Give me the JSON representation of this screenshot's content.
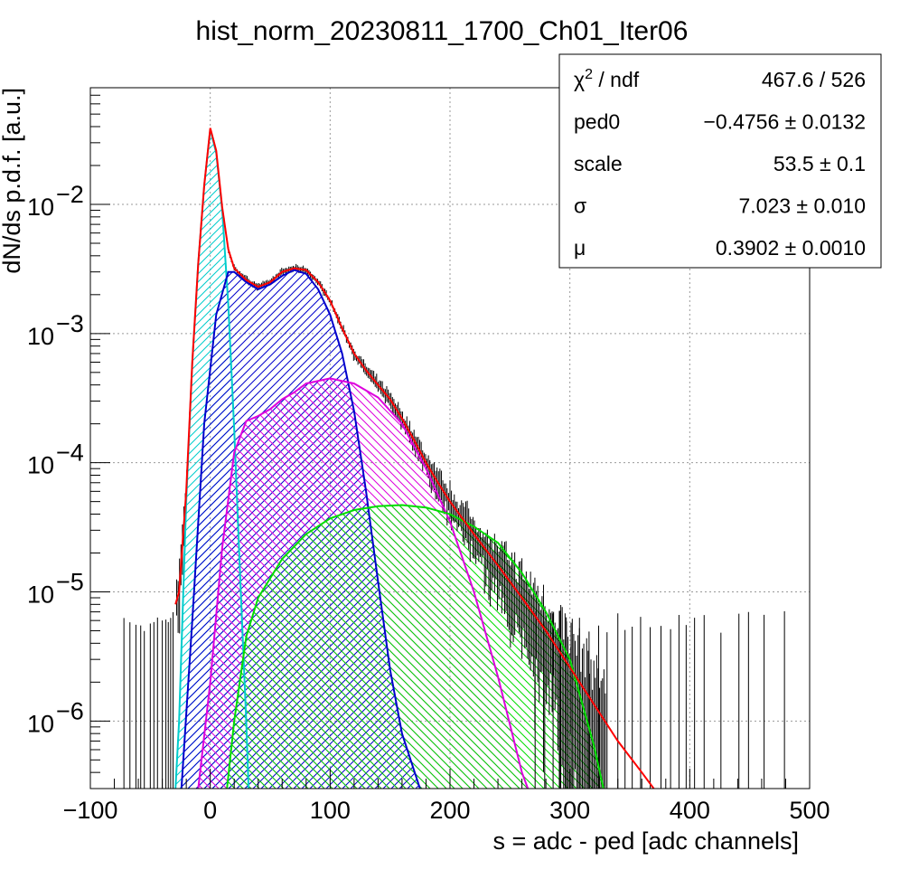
{
  "chart_data": {
    "type": "line",
    "title": "hist_norm_20230811_1700_Ch01_Iter06",
    "xlabel": "s = adc - ped [adc channels]",
    "ylabel": "dN/ds p.d.f. [a.u.]",
    "x_scale": "linear",
    "y_scale": "log",
    "xlim": [
      -100,
      500
    ],
    "ylim": [
      3e-07,
      0.08
    ],
    "grid": true,
    "x_ticks": [
      {
        "value": -100,
        "label": "−100"
      },
      {
        "value": 0,
        "label": "0"
      },
      {
        "value": 100,
        "label": "100"
      },
      {
        "value": 200,
        "label": "200"
      },
      {
        "value": 300,
        "label": "300"
      },
      {
        "value": 400,
        "label": "400"
      },
      {
        "value": 500,
        "label": "500"
      }
    ],
    "y_ticks": [
      {
        "value": 0.01,
        "base": "10",
        "exp": "−2"
      },
      {
        "value": 0.001,
        "base": "10",
        "exp": "−3"
      },
      {
        "value": 0.0001,
        "base": "10",
        "exp": "−4"
      },
      {
        "value": 1e-05,
        "base": "10",
        "exp": "−5"
      },
      {
        "value": 1e-06,
        "base": "10",
        "exp": "−6"
      }
    ],
    "series": [
      {
        "color": "#00cccc",
        "fill": true,
        "hatch": "diag-left",
        "points": [
          [
            -29,
            3e-07
          ],
          [
            -26,
            1e-06
          ],
          [
            -20,
            5e-05
          ],
          [
            -15,
            0.0006
          ],
          [
            -10,
            0.0035
          ],
          [
            -5,
            0.014
          ],
          [
            0,
            0.038
          ],
          [
            5,
            0.025
          ],
          [
            10,
            0.009
          ],
          [
            15,
            0.0017
          ],
          [
            20,
            0.00018
          ],
          [
            25,
            1.3e-05
          ],
          [
            30,
            1e-06
          ],
          [
            32,
            3e-07
          ]
        ]
      },
      {
        "color": "#0000cc",
        "fill": true,
        "hatch": "diag-left",
        "points": [
          [
            -24,
            3e-07
          ],
          [
            -15,
            6e-06
          ],
          [
            -5,
            0.0002
          ],
          [
            5,
            0.0014
          ],
          [
            15,
            0.003
          ],
          [
            20,
            0.003
          ],
          [
            30,
            0.0025
          ],
          [
            40,
            0.0022
          ],
          [
            50,
            0.0024
          ],
          [
            60,
            0.0028
          ],
          [
            70,
            0.0031
          ],
          [
            80,
            0.0029
          ],
          [
            90,
            0.0022
          ],
          [
            100,
            0.0014
          ],
          [
            110,
            0.0007
          ],
          [
            120,
            0.00025
          ],
          [
            130,
            6e-05
          ],
          [
            140,
            1.2e-05
          ],
          [
            150,
            2.5e-06
          ],
          [
            160,
            8e-07
          ],
          [
            175,
            3e-07
          ]
        ]
      },
      {
        "color": "#dd00dd",
        "fill": true,
        "hatch": "diag-right",
        "points": [
          [
            -10,
            3e-07
          ],
          [
            0,
            2e-06
          ],
          [
            10,
            2.2e-05
          ],
          [
            20,
            0.00012
          ],
          [
            30,
            0.00021
          ],
          [
            40,
            0.00023
          ],
          [
            50,
            0.00026
          ],
          [
            60,
            0.00031
          ],
          [
            70,
            0.00035
          ],
          [
            80,
            0.00041
          ],
          [
            100,
            0.00045
          ],
          [
            120,
            0.00041
          ],
          [
            140,
            0.00032
          ],
          [
            160,
            0.0002
          ],
          [
            180,
            9e-05
          ],
          [
            200,
            3.5e-05
          ],
          [
            220,
            1e-05
          ],
          [
            240,
            2.2e-06
          ],
          [
            260,
            4e-07
          ],
          [
            265,
            3e-07
          ]
        ]
      },
      {
        "color": "#00dd00",
        "fill": true,
        "hatch": "diag-right",
        "points": [
          [
            14,
            3e-07
          ],
          [
            20,
            1e-06
          ],
          [
            30,
            4.5e-06
          ],
          [
            40,
            9e-06
          ],
          [
            60,
            1.8e-05
          ],
          [
            80,
            2.8e-05
          ],
          [
            100,
            3.7e-05
          ],
          [
            120,
            4.3e-05
          ],
          [
            140,
            4.6e-05
          ],
          [
            160,
            4.7e-05
          ],
          [
            180,
            4.5e-05
          ],
          [
            200,
            4e-05
          ],
          [
            220,
            3.2e-05
          ],
          [
            240,
            2.4e-05
          ],
          [
            260,
            1.4e-05
          ],
          [
            280,
            7e-06
          ],
          [
            300,
            3e-06
          ],
          [
            320,
            6.5e-07
          ],
          [
            328,
            3e-07
          ]
        ]
      },
      {
        "color": "#ff0000",
        "fill": false,
        "points": [
          [
            -29,
            8e-06
          ],
          [
            -26,
            1e-05
          ],
          [
            -20,
            6e-05
          ],
          [
            -15,
            0.0006
          ],
          [
            -10,
            0.0035
          ],
          [
            -5,
            0.014
          ],
          [
            0,
            0.039
          ],
          [
            5,
            0.026
          ],
          [
            10,
            0.0095
          ],
          [
            15,
            0.0045
          ],
          [
            20,
            0.0032
          ],
          [
            30,
            0.0026
          ],
          [
            40,
            0.0023
          ],
          [
            50,
            0.0025
          ],
          [
            60,
            0.003
          ],
          [
            70,
            0.0032
          ],
          [
            80,
            0.0031
          ],
          [
            90,
            0.0025
          ],
          [
            100,
            0.0018
          ],
          [
            110,
            0.0011
          ],
          [
            120,
            0.0007
          ],
          [
            130,
            0.00052
          ],
          [
            140,
            0.0004
          ],
          [
            150,
            0.00031
          ],
          [
            160,
            0.00022
          ],
          [
            170,
            0.00015
          ],
          [
            180,
            0.0001
          ],
          [
            190,
            7e-05
          ],
          [
            200,
            5e-05
          ],
          [
            220,
            2.8e-05
          ],
          [
            240,
            1.6e-05
          ],
          [
            260,
            9e-06
          ],
          [
            280,
            5e-06
          ],
          [
            300,
            2.6e-06
          ],
          [
            320,
            1.35e-06
          ],
          [
            340,
            7e-07
          ],
          [
            360,
            4e-07
          ],
          [
            370,
            3e-07
          ]
        ]
      }
    ]
  },
  "stats_box": {
    "rows": [
      {
        "label": "χ",
        "label_sup": "2",
        "label_rest": " / ndf",
        "value": "467.6 / 526"
      },
      {
        "label": "ped0",
        "label_sup": "",
        "label_rest": "",
        "value": "−0.4756 ± 0.0132"
      },
      {
        "label": "scale",
        "label_sup": "",
        "label_rest": "",
        "value": "53.5 ± 0.1"
      },
      {
        "label": "σ",
        "label_sup": "",
        "label_rest": "",
        "value": "7.023 ± 0.010"
      },
      {
        "label": "μ",
        "label_sup": "",
        "label_rest": "",
        "value": "0.3902 ± 0.0010"
      }
    ]
  }
}
